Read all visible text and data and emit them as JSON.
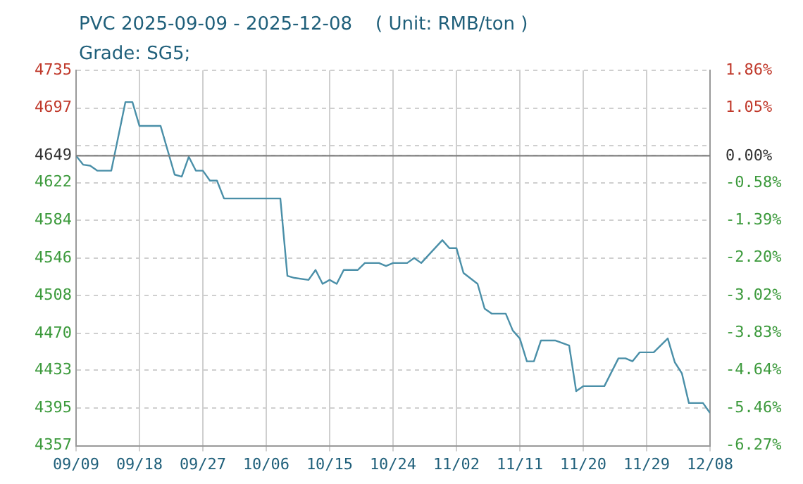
{
  "chart_data": {
    "type": "line",
    "title": "PVC 2025-09-09 - 2025-12-08    ( Unit: RMB/ton )",
    "subtitle": "Grade: SG5;",
    "x": [
      "2025-09-09",
      "2025-09-10",
      "2025-09-11",
      "2025-09-12",
      "2025-09-14",
      "2025-09-16",
      "2025-09-17",
      "2025-09-18",
      "2025-09-21",
      "2025-09-23",
      "2025-09-24",
      "2025-09-25",
      "2025-09-26",
      "2025-09-27",
      "2025-09-28",
      "2025-09-29",
      "2025-09-30",
      "2025-10-08",
      "2025-10-09",
      "2025-10-10",
      "2025-10-12",
      "2025-10-13",
      "2025-10-14",
      "2025-10-15",
      "2025-10-16",
      "2025-10-17",
      "2025-10-19",
      "2025-10-20",
      "2025-10-22",
      "2025-10-23",
      "2025-10-24",
      "2025-10-26",
      "2025-10-27",
      "2025-10-28",
      "2025-10-31",
      "2025-11-01",
      "2025-11-02",
      "2025-11-03",
      "2025-11-05",
      "2025-11-06",
      "2025-11-07",
      "2025-11-09",
      "2025-11-10",
      "2025-11-11",
      "2025-11-12",
      "2025-11-13",
      "2025-11-14",
      "2025-11-16",
      "2025-11-18",
      "2025-11-19",
      "2025-11-20",
      "2025-11-23",
      "2025-11-25",
      "2025-11-26",
      "2025-11-27",
      "2025-11-28",
      "2025-11-30",
      "2025-12-02",
      "2025-12-03",
      "2025-12-04",
      "2025-12-05",
      "2025-12-07",
      "2025-12-08"
    ],
    "series": [
      {
        "color": "#4a8fa8",
        "values": [
          4649,
          4640,
          4639,
          4634,
          4634,
          4703,
          4703,
          4679,
          4679,
          4630,
          4628,
          4648,
          4634,
          4634,
          4624,
          4624,
          4606,
          4606,
          4528,
          4526,
          4524,
          4534,
          4520,
          4524,
          4520,
          4534,
          4534,
          4541,
          4541,
          4538,
          4541,
          4541,
          4546,
          4541,
          4564,
          4556,
          4556,
          4531,
          4520,
          4495,
          4490,
          4490,
          4473,
          4465,
          4442,
          4442,
          4463,
          4463,
          4458,
          4412,
          4417,
          4417,
          4445,
          4445,
          4442,
          4451,
          4451,
          4465,
          4441,
          4430,
          4400,
          4400,
          4390
        ]
      }
    ],
    "xlim": [
      "2025-09-09",
      "2025-12-08"
    ],
    "xticks": [
      {
        "value": "2025-09-09",
        "label": "09/09"
      },
      {
        "value": "2025-09-18",
        "label": "09/18"
      },
      {
        "value": "2025-09-27",
        "label": "09/27"
      },
      {
        "value": "2025-10-06",
        "label": "10/06"
      },
      {
        "value": "2025-10-15",
        "label": "10/15"
      },
      {
        "value": "2025-10-24",
        "label": "10/24"
      },
      {
        "value": "2025-11-02",
        "label": "11/02"
      },
      {
        "value": "2025-11-11",
        "label": "11/11"
      },
      {
        "value": "2025-11-20",
        "label": "11/20"
      },
      {
        "value": "2025-11-29",
        "label": "11/29"
      },
      {
        "value": "2025-12-08",
        "label": "12/08"
      }
    ],
    "ylim": [
      4357,
      4735
    ],
    "yticks": [
      4357,
      4395,
      4433,
      4470,
      4508,
      4546,
      4584,
      4622,
      4649,
      {
        "value": 4659,
        "label": null
      },
      4697,
      4735
    ],
    "y2lim": [
      -6.27,
      1.86
    ],
    "y2ticks": [
      {
        "value": -6.27,
        "label": "-6.27%"
      },
      {
        "value": -5.46,
        "label": "-5.46%"
      },
      {
        "value": -4.64,
        "label": "-4.64%"
      },
      {
        "value": -3.83,
        "label": "-3.83%"
      },
      {
        "value": -3.02,
        "label": "-3.02%"
      },
      {
        "value": -2.2,
        "label": "-2.20%"
      },
      {
        "value": -1.39,
        "label": "-1.39%"
      },
      {
        "value": -0.58,
        "label": "-0.58%"
      },
      {
        "value": 0,
        "label": "0.00%"
      },
      {
        "value": 1.05,
        "label": "1.05%"
      },
      {
        "value": 1.86,
        "label": "1.86%"
      }
    ],
    "ref_lines": [
      {
        "axis": "y",
        "value": 4649,
        "color": "#808080"
      }
    ],
    "grid": true,
    "legend": false,
    "marker": "none",
    "line_style": "solid"
  }
}
